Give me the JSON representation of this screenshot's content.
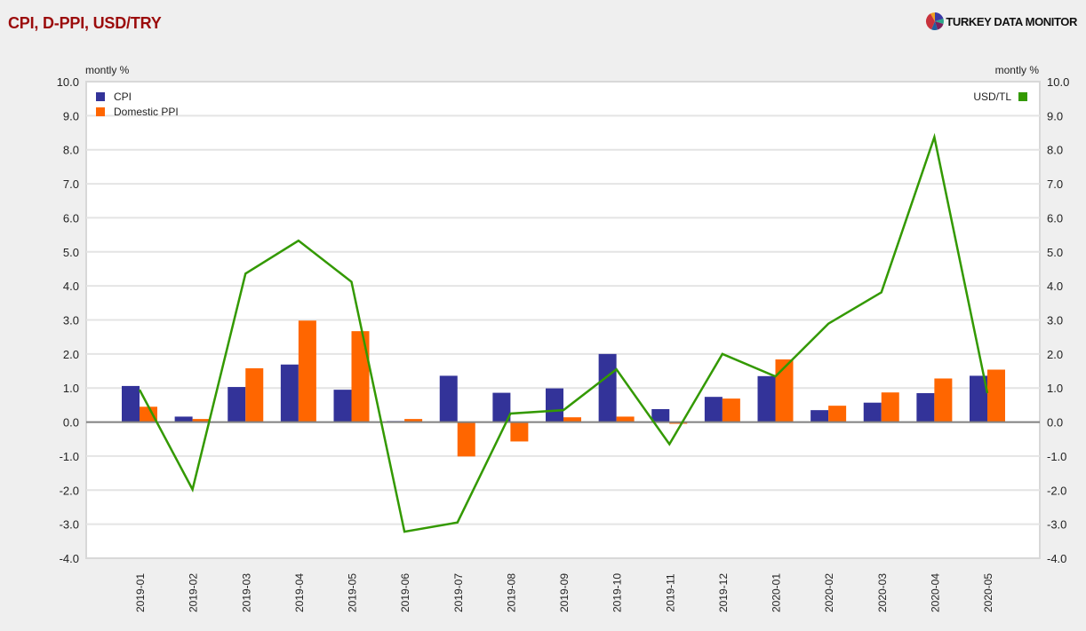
{
  "header": {
    "title": "CPI, D-PPI, USD/TRY",
    "brand": "TURKEY DATA MONITOR",
    "brand_icon": "pie-chart-logo-icon"
  },
  "colors": {
    "cpi": "#333399",
    "ppi": "#ff6600",
    "usd": "#339900",
    "title": "#9b0b0b",
    "grid": "#e4e4e4",
    "zero_line": "#808080",
    "background": "#efefef",
    "plot_bg": "#ffffff"
  },
  "chart_data": {
    "type": "bar+line",
    "title": "CPI, D-PPI, USD/TRY",
    "ylabel_left": "montly %",
    "ylabel_right": "montly %",
    "ylim": [
      -4.0,
      10.0
    ],
    "ylim_right": [
      -4.0,
      10.0
    ],
    "yticks": [
      "10.0",
      "9.0",
      "8.0",
      "7.0",
      "6.0",
      "5.0",
      "4.0",
      "3.0",
      "2.0",
      "1.0",
      "0.0",
      "-1.0",
      "-2.0",
      "-3.0",
      "-4.0"
    ],
    "grid": true,
    "legend_left": [
      "CPI",
      "Domestic PPI"
    ],
    "legend_right": [
      "USD/TL"
    ],
    "categories": [
      "2019-01",
      "2019-02",
      "2019-03",
      "2019-04",
      "2019-05",
      "2019-06",
      "2019-07",
      "2019-08",
      "2019-09",
      "2019-10",
      "2019-11",
      "2019-12",
      "2020-01",
      "2020-02",
      "2020-03",
      "2020-04",
      "2020-05"
    ],
    "series": [
      {
        "name": "CPI",
        "type": "bar",
        "axis": "left",
        "values": [
          1.06,
          0.16,
          1.03,
          1.69,
          0.95,
          0.03,
          1.36,
          0.86,
          0.99,
          2.0,
          0.38,
          0.74,
          1.35,
          0.35,
          0.57,
          0.85,
          1.36
        ]
      },
      {
        "name": "Domestic PPI",
        "type": "bar",
        "axis": "left",
        "values": [
          0.45,
          0.09,
          1.58,
          2.98,
          2.67,
          0.09,
          -1.01,
          -0.57,
          0.14,
          0.16,
          -0.05,
          0.69,
          1.84,
          0.48,
          0.87,
          1.28,
          1.54
        ]
      },
      {
        "name": "USD/TL",
        "type": "line",
        "axis": "right",
        "values": [
          0.95,
          -1.98,
          4.36,
          5.33,
          4.12,
          -3.22,
          -2.95,
          0.25,
          0.35,
          1.55,
          -0.65,
          2.0,
          1.34,
          2.89,
          3.81,
          8.37,
          0.85
        ]
      }
    ]
  }
}
